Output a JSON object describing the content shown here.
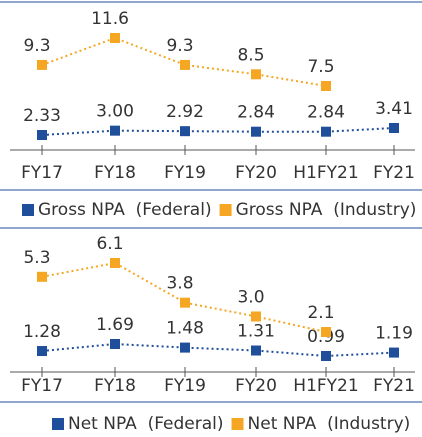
{
  "chart_data": [
    {
      "type": "line",
      "categories": [
        "FY17",
        "FY18",
        "FY19",
        "FY20",
        "H1FY21",
        "FY21"
      ],
      "series": [
        {
          "name": "Gross NPA  (Federal)",
          "color": "#1f4e9b",
          "values": [
            2.33,
            3.0,
            2.92,
            2.84,
            2.84,
            3.41
          ],
          "value_labels": [
            "2.33",
            "3.00",
            "2.92",
            "2.84",
            "2.84",
            "3.41"
          ]
        },
        {
          "name": "Gross NPA  (Industry)",
          "color": "#f5a623",
          "values": [
            9.3,
            11.6,
            9.3,
            8.5,
            7.5,
            null
          ],
          "value_labels": [
            "9.3",
            "11.6",
            "9.3",
            "8.5",
            "7.5",
            null
          ]
        }
      ]
    },
    {
      "type": "line",
      "categories": [
        "FY17",
        "FY18",
        "FY19",
        "FY20",
        "H1FY21",
        "FY21"
      ],
      "series": [
        {
          "name": "Net NPA  (Federal)",
          "color": "#1f4e9b",
          "values": [
            1.28,
            1.69,
            1.48,
            1.31,
            0.99,
            1.19
          ],
          "value_labels": [
            "1.28",
            "1.69",
            "1.48",
            "1.31",
            "0.99",
            "1.19"
          ]
        },
        {
          "name": "Net NPA  (Industry)",
          "color": "#f5a623",
          "values": [
            5.3,
            6.1,
            3.8,
            3.0,
            2.1,
            null
          ],
          "value_labels": [
            "5.3",
            "6.1",
            "3.8",
            "3.0",
            "2.1",
            null
          ]
        }
      ]
    }
  ]
}
